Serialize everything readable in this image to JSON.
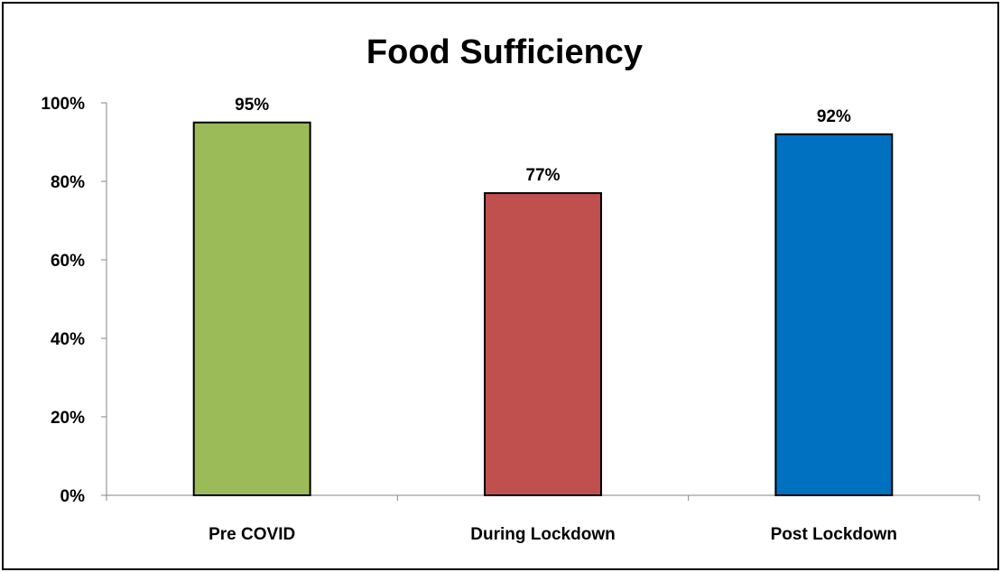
{
  "chart_data": {
    "type": "bar",
    "title": "Food Sufficiency",
    "xlabel": "",
    "ylabel": "",
    "categories": [
      "Pre COVID",
      "During Lockdown",
      "Post Lockdown"
    ],
    "values": [
      95,
      77,
      92
    ],
    "data_labels": [
      "95%",
      "77%",
      "92%"
    ],
    "colors": [
      "#9BBB59",
      "#C0504D",
      "#0070C0"
    ],
    "ylim": [
      0,
      100
    ],
    "yticks": [
      0,
      20,
      40,
      60,
      80,
      100
    ],
    "ytick_labels": [
      "0%",
      "20%",
      "40%",
      "60%",
      "80%",
      "100%"
    ],
    "grid": false,
    "legend": "none"
  }
}
